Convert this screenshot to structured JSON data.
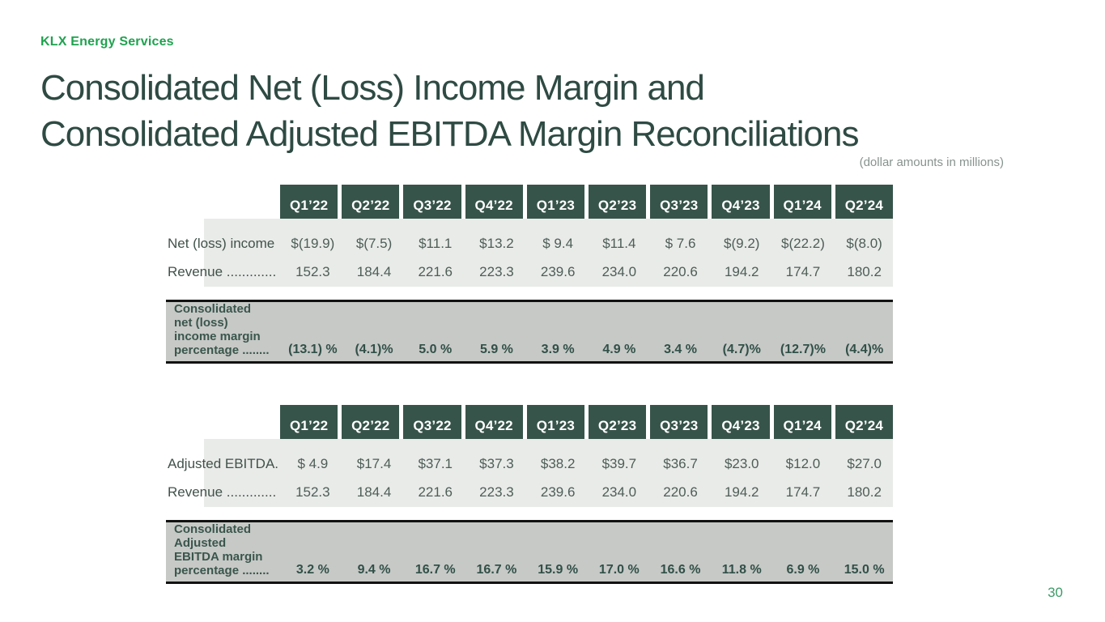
{
  "brand": "KLX Energy Services",
  "title": "Consolidated Net (Loss) Income Margin and\nConsolidated Adjusted EBITDA Margin Reconciliations",
  "subtitle": "(dollar amounts in millions)",
  "page_number": "30",
  "colors": {
    "brand_green": "#1FA24F",
    "title_text": "#2E4A43",
    "header_cell_bg": "#37544A",
    "data_band_bg": "#E9EBE9",
    "summary_band_bg": "#C7C9C7",
    "border_black": "#121212",
    "value_text": "#4E5D57",
    "page_number_green": "#3E9B69"
  },
  "quarters": [
    "Q1’22",
    "Q2’22",
    "Q3’22",
    "Q4’22",
    "Q1’23",
    "Q2’23",
    "Q3’23",
    "Q4’23",
    "Q1’24",
    "Q2’24"
  ],
  "tables": [
    {
      "name": "net_loss_income_margin_reconciliation",
      "rows": [
        {
          "label": "Net (loss) income",
          "values": [
            "$(19.9)",
            "$(7.5)",
            "$11.1",
            "$13.2",
            "$ 9.4",
            "$11.4",
            "$ 7.6",
            "$(9.2)",
            "$(22.2)",
            "$(8.0)"
          ]
        },
        {
          "label": "Revenue .............",
          "values": [
            "152.3",
            "184.4",
            "221.6",
            "223.3",
            "239.6",
            "234.0",
            "220.6",
            "194.2",
            "174.7",
            "180.2"
          ]
        }
      ],
      "summary": {
        "label": "Consolidated\nnet (loss)\nincome margin\npercentage ........",
        "values": [
          "(13.1) %",
          "(4.1)%",
          "5.0 %",
          "5.9 %",
          "3.9 %",
          "4.9 %",
          "3.4 %",
          "(4.7)%",
          "(12.7)%",
          "(4.4)%"
        ]
      }
    },
    {
      "name": "adjusted_ebitda_margin_reconciliation",
      "rows": [
        {
          "label": "Adjusted EBITDA.",
          "values": [
            "$ 4.9",
            "$17.4",
            "$37.1",
            "$37.3",
            "$38.2",
            "$39.7",
            "$36.7",
            "$23.0",
            "$12.0",
            "$27.0"
          ]
        },
        {
          "label": "Revenue .............",
          "values": [
            "152.3",
            "184.4",
            "221.6",
            "223.3",
            "239.6",
            "234.0",
            "220.6",
            "194.2",
            "174.7",
            "180.2"
          ]
        }
      ],
      "summary": {
        "label": "Consolidated\nAdjusted\nEBITDA margin\npercentage ........",
        "values": [
          "3.2 %",
          "9.4 %",
          "16.7 %",
          "16.7 %",
          "15.9 %",
          "17.0 %",
          "16.6 %",
          "11.8 %",
          "6.9 %",
          "15.0 %"
        ]
      }
    }
  ]
}
